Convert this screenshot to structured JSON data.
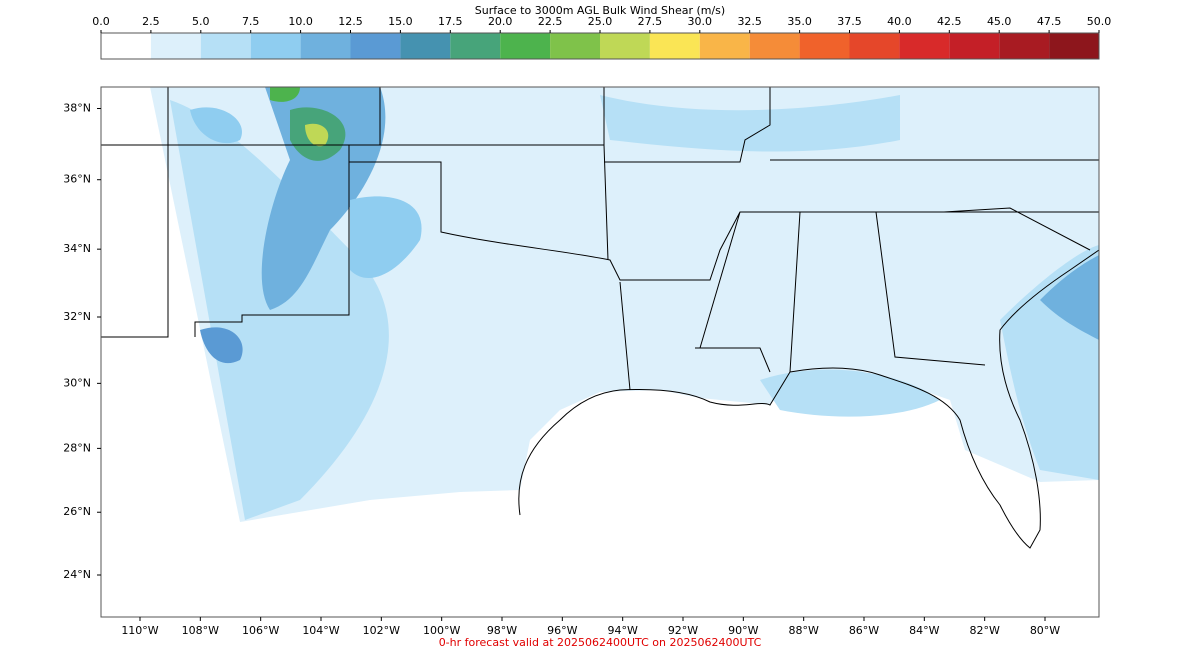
{
  "colorbar": {
    "title": "Surface to 3000m AGL Bulk Wind Shear (m/s)",
    "ticks": [
      {
        "value": 0,
        "label": "0.0"
      },
      {
        "value": 2.5,
        "label": "2.5"
      },
      {
        "value": 5,
        "label": "5.0"
      },
      {
        "value": 7.5,
        "label": "7.5"
      },
      {
        "value": 10,
        "label": "10.0"
      },
      {
        "value": 12.5,
        "label": "12.5"
      },
      {
        "value": 15,
        "label": "15.0"
      },
      {
        "value": 17.5,
        "label": "17.5"
      },
      {
        "value": 20,
        "label": "20.0"
      },
      {
        "value": 22.5,
        "label": "22.5"
      },
      {
        "value": 25,
        "label": "25.0"
      },
      {
        "value": 27.5,
        "label": "27.5"
      },
      {
        "value": 30,
        "label": "30.0"
      },
      {
        "value": 32.5,
        "label": "32.5"
      },
      {
        "value": 35,
        "label": "35.0"
      },
      {
        "value": 37.5,
        "label": "37.5"
      },
      {
        "value": 40,
        "label": "40.0"
      },
      {
        "value": 42.5,
        "label": "42.5"
      },
      {
        "value": 45,
        "label": "45.0"
      },
      {
        "value": 47.5,
        "label": "47.5"
      },
      {
        "value": 50,
        "label": "50.0"
      }
    ],
    "colors": [
      "#ffffff",
      "#ddf0fb",
      "#b6e0f6",
      "#8fcdf0",
      "#6fb1de",
      "#5a9ad4",
      "#4592b0",
      "#47a47a",
      "#4db34d",
      "#7fc24a",
      "#bfd856",
      "#fae555",
      "#f9b548",
      "#f58c38",
      "#f0622b",
      "#e5472a",
      "#d82a2a",
      "#c41f27",
      "#a81b22",
      "#8d161c"
    ]
  },
  "map": {
    "lat_labels": [
      {
        "value": 38,
        "label": "38°N"
      },
      {
        "value": 36,
        "label": "36°N"
      },
      {
        "value": 34,
        "label": "34°N"
      },
      {
        "value": 32,
        "label": "32°N"
      },
      {
        "value": 30,
        "label": "30°N"
      },
      {
        "value": 28,
        "label": "28°N"
      },
      {
        "value": 26,
        "label": "26°N"
      },
      {
        "value": 24,
        "label": "24°N"
      }
    ],
    "lon_labels": [
      {
        "value": -110,
        "label": "110°W"
      },
      {
        "value": -108,
        "label": "108°W"
      },
      {
        "value": -106,
        "label": "106°W"
      },
      {
        "value": -104,
        "label": "104°W"
      },
      {
        "value": -102,
        "label": "102°W"
      },
      {
        "value": -100,
        "label": "100°W"
      },
      {
        "value": -98,
        "label": "98°W"
      },
      {
        "value": -96,
        "label": "96°W"
      },
      {
        "value": -94,
        "label": "94°W"
      },
      {
        "value": -92,
        "label": "92°W"
      },
      {
        "value": -90,
        "label": "90°W"
      },
      {
        "value": -88,
        "label": "88°W"
      },
      {
        "value": -86,
        "label": "86°W"
      },
      {
        "value": -84,
        "label": "84°W"
      },
      {
        "value": -82,
        "label": "82°W"
      },
      {
        "value": -80,
        "label": "80°W"
      }
    ]
  },
  "footer": "0-hr forecast valid at 2025062400UTC on 2025062400UTC"
}
